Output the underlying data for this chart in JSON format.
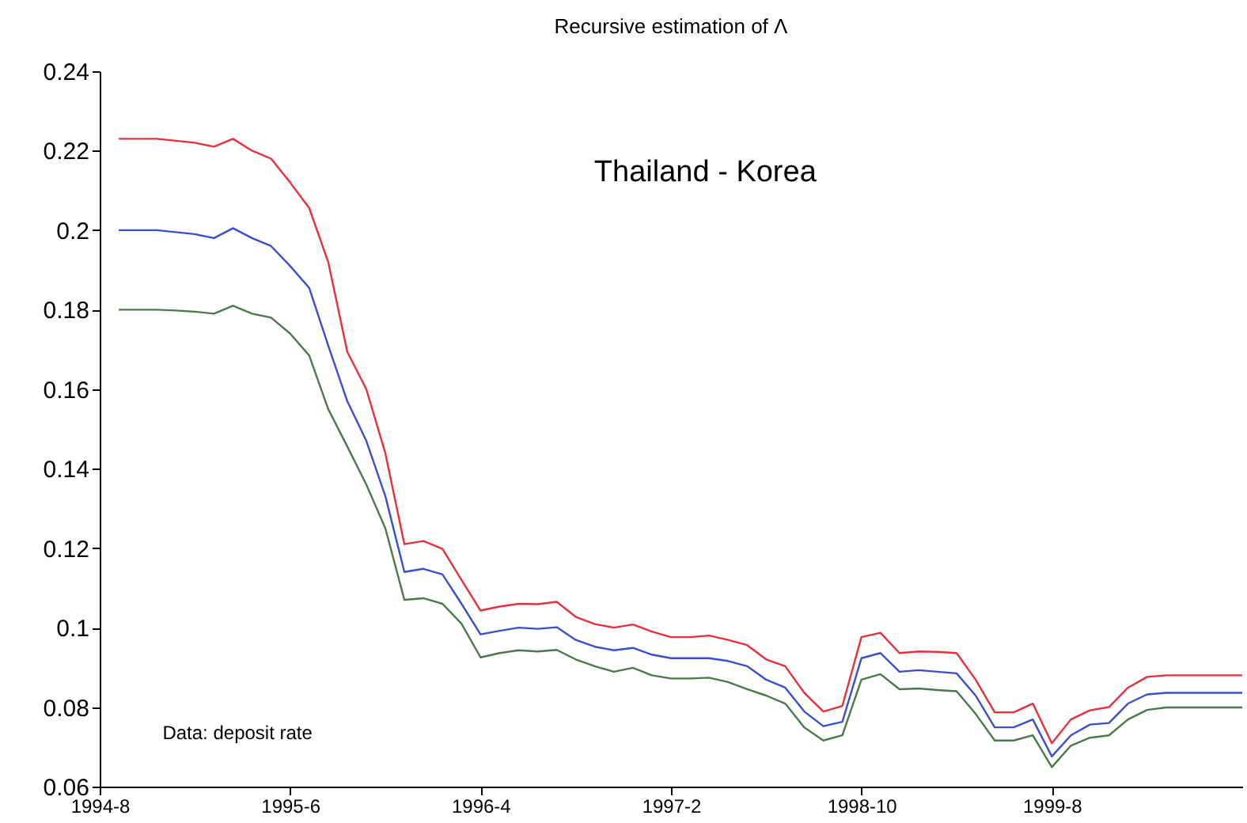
{
  "chart_data": {
    "type": "line",
    "title": "Recursive estimation of Λ",
    "annotations": [
      "Thailand - Korea",
      "Data: deposit rate"
    ],
    "categories": [
      "1994-8",
      null,
      null,
      null,
      null,
      null,
      null,
      null,
      null,
      null,
      "1995-6",
      null,
      null,
      null,
      null,
      null,
      null,
      null,
      null,
      null,
      "1996-4",
      null,
      null,
      null,
      null,
      null,
      null,
      null,
      null,
      null,
      "1997-2",
      null,
      null,
      null,
      null,
      null,
      null,
      null,
      null,
      null,
      "1998-10",
      null,
      null,
      null,
      null,
      null,
      null,
      null,
      null,
      null,
      "1999-8",
      null,
      null,
      null,
      null,
      null,
      null,
      null,
      null,
      null,
      null
    ],
    "ylim": [
      0.06,
      0.24
    ],
    "yticks": [
      0.06,
      0.08,
      0.1,
      0.12,
      0.14,
      0.16,
      0.18,
      0.2,
      0.22,
      0.24
    ],
    "series": [
      {
        "color": "#e8303a",
        "values": [
          null,
          0.223,
          0.223,
          0.223,
          0.2225,
          0.222,
          0.221,
          0.223,
          0.22,
          0.218,
          0.212,
          0.2056,
          0.192,
          0.1694,
          0.16,
          0.1439,
          0.121,
          0.1218,
          0.1198,
          0.112,
          0.1043,
          0.1053,
          0.106,
          0.1059,
          0.1065,
          0.1027,
          0.1009,
          0.1,
          0.1008,
          0.099,
          0.0976,
          0.0976,
          0.098,
          0.0969,
          0.0956,
          0.092,
          0.0903,
          0.0836,
          0.0789,
          0.0803,
          0.0976,
          0.0987,
          0.0936,
          0.094,
          0.0939,
          0.0936,
          0.0869,
          0.0787,
          0.0787,
          0.0809,
          0.0709,
          0.0769,
          0.0792,
          0.08,
          0.0849,
          0.0876,
          0.088,
          0.088,
          0.088,
          0.088,
          0.088
        ]
      },
      {
        "color": "#3a4fd0",
        "values": [
          null,
          0.2,
          0.2,
          0.2,
          0.1995,
          0.199,
          0.198,
          0.2005,
          0.198,
          0.196,
          0.191,
          0.1855,
          0.171,
          0.157,
          0.147,
          0.1331,
          0.114,
          0.1148,
          0.1134,
          0.106,
          0.0983,
          0.0992,
          0.1,
          0.0997,
          0.1001,
          0.0969,
          0.0952,
          0.0943,
          0.0949,
          0.0932,
          0.0923,
          0.0923,
          0.0923,
          0.0916,
          0.0903,
          0.0869,
          0.0849,
          0.0789,
          0.0752,
          0.0763,
          0.0923,
          0.0936,
          0.0889,
          0.0893,
          0.0889,
          0.0885,
          0.0829,
          0.0749,
          0.0749,
          0.0769,
          0.0676,
          0.0729,
          0.0756,
          0.076,
          0.0809,
          0.0832,
          0.0836,
          0.0836,
          0.0836,
          0.0836,
          0.0836
        ]
      },
      {
        "color": "#4a7a4a",
        "values": [
          null,
          0.18,
          0.18,
          0.18,
          0.1798,
          0.1795,
          0.179,
          0.181,
          0.179,
          0.178,
          0.174,
          0.1685,
          0.155,
          0.1456,
          0.136,
          0.125,
          0.107,
          0.1074,
          0.106,
          0.101,
          0.0925,
          0.0936,
          0.0943,
          0.094,
          0.0944,
          0.092,
          0.0903,
          0.0889,
          0.0899,
          0.088,
          0.0872,
          0.0872,
          0.0874,
          0.0863,
          0.0845,
          0.0829,
          0.0809,
          0.0749,
          0.0716,
          0.0729,
          0.0869,
          0.0883,
          0.0845,
          0.0847,
          0.0843,
          0.084,
          0.0783,
          0.0716,
          0.0716,
          0.0729,
          0.0649,
          0.0703,
          0.0723,
          0.0729,
          0.0769,
          0.0793,
          0.0799,
          0.0799,
          0.0799,
          0.0799,
          0.0799
        ]
      }
    ]
  }
}
